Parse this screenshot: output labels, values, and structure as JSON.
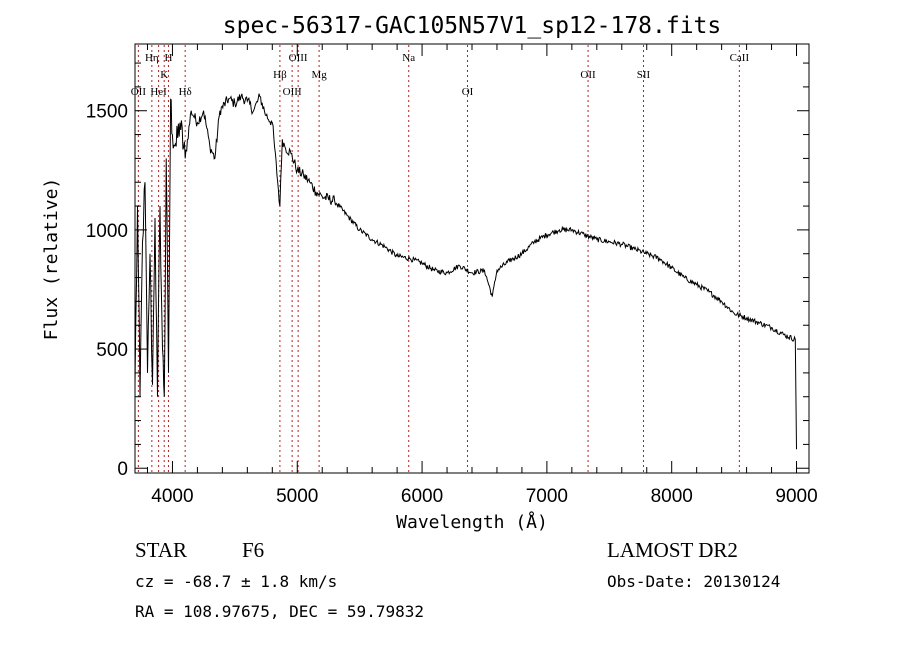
{
  "chart_data": {
    "type": "line",
    "title": "spec-56317-GAC105N57V1_sp12-178.fits",
    "xlabel": "Wavelength (Å)",
    "ylabel": "Flux (relative)",
    "xlim": [
      3700,
      9100
    ],
    "ylim": [
      -20,
      1780
    ],
    "x_ticks": [
      4000,
      5000,
      6000,
      7000,
      8000,
      9000
    ],
    "y_ticks": [
      0,
      500,
      1000,
      1500
    ],
    "grid": false,
    "line_color": "#000000",
    "marker_color": "#b22222",
    "series": [
      {
        "x": [
          3700,
          3720,
          3740,
          3760,
          3780,
          3800,
          3820,
          3840,
          3860,
          3880,
          3900,
          3920,
          3935,
          3950,
          3968,
          3985,
          4000,
          4030,
          4060,
          4102,
          4150,
          4200,
          4250,
          4300,
          4340,
          4380,
          4450,
          4500,
          4550,
          4600,
          4650,
          4700,
          4750,
          4800,
          4861,
          4880,
          4900,
          4950,
          5000,
          5050,
          5100,
          5150,
          5200,
          5300,
          5400,
          5500,
          5600,
          5700,
          5800,
          5900,
          6000,
          6100,
          6200,
          6300,
          6400,
          6500,
          6563,
          6600,
          6700,
          6800,
          6900,
          7000,
          7100,
          7200,
          7300,
          7400,
          7500,
          7600,
          7700,
          7800,
          7900,
          8000,
          8100,
          8200,
          8300,
          8400,
          8500,
          8600,
          8700,
          8800,
          8900,
          8990,
          9000
        ],
        "y": [
          350,
          1100,
          300,
          950,
          1200,
          400,
          900,
          350,
          1050,
          300,
          1100,
          500,
          300,
          1300,
          400,
          1550,
          1400,
          1350,
          1450,
          1300,
          1500,
          1450,
          1500,
          1350,
          1300,
          1500,
          1550,
          1530,
          1560,
          1540,
          1500,
          1560,
          1480,
          1450,
          1100,
          1380,
          1350,
          1320,
          1250,
          1230,
          1200,
          1160,
          1140,
          1120,
          1060,
          1000,
          960,
          930,
          890,
          880,
          860,
          830,
          820,
          850,
          820,
          830,
          720,
          830,
          870,
          900,
          950,
          980,
          1000,
          1000,
          980,
          960,
          950,
          940,
          920,
          900,
          880,
          840,
          800,
          770,
          740,
          700,
          650,
          630,
          610,
          590,
          560,
          540,
          80
        ]
      }
    ],
    "line_markers": [
      {
        "label": "OII",
        "wavelength": 3727,
        "row": 3
      },
      {
        "label": "Hη",
        "wavelength": 3835,
        "row": 1
      },
      {
        "label": "HeI",
        "wavelength": 3889,
        "row": 3
      },
      {
        "label": "K",
        "wavelength": 3934,
        "row": 2
      },
      {
        "label": "H",
        "wavelength": 3968,
        "row": 1
      },
      {
        "label": "Hδ",
        "wavelength": 4102,
        "row": 3
      },
      {
        "label": "Hβ",
        "wavelength": 4861,
        "row": 2
      },
      {
        "label": "OIII",
        "wavelength": 4959,
        "row": 3
      },
      {
        "label": "OIII",
        "wavelength": 5007,
        "row": 1
      },
      {
        "label": "Mg",
        "wavelength": 5175,
        "row": 2
      },
      {
        "label": "Na",
        "wavelength": 5893,
        "row": 1
      },
      {
        "label": "OI",
        "wavelength": 6364,
        "row": 3
      },
      {
        "label": "OII",
        "wavelength": 7330,
        "row": 2
      },
      {
        "label": "SII",
        "wavelength": 7774,
        "row": 2
      },
      {
        "label": "CaII",
        "wavelength": 8542,
        "row": 1
      }
    ]
  },
  "info": {
    "object_class": "STAR",
    "subclass": "F6",
    "survey": "LAMOST DR2",
    "redshift": "cz = -68.7 ± 1.8 km/s",
    "obs_date": "Obs-Date: 20130124",
    "coords": "RA = 108.97675, DEC =  59.79832"
  }
}
